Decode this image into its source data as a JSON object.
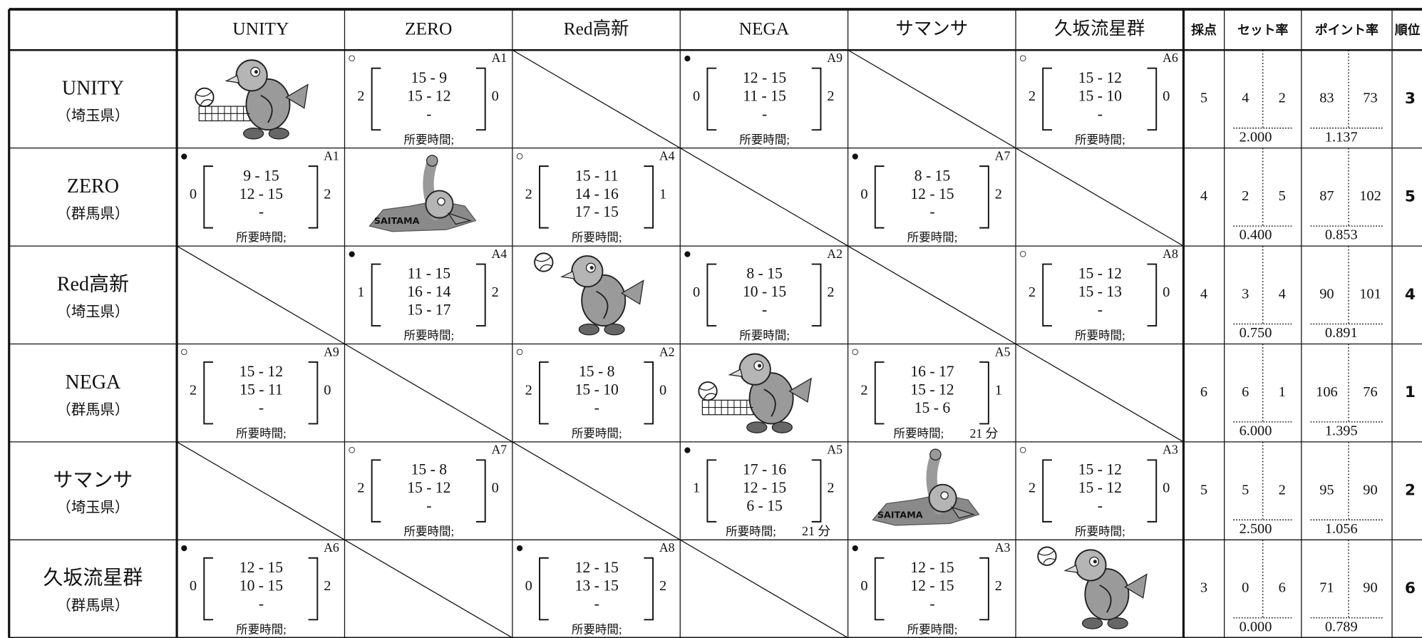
{
  "header": {
    "teams": [
      "UNITY",
      "ZERO",
      "Red高新",
      "NEGA",
      "サマンサ",
      "久坂流星群"
    ],
    "stats": [
      "採点",
      "セット率",
      "ポイント率",
      "順位"
    ]
  },
  "rows": [
    {
      "team": "UNITY",
      "pref": "（埼玉県）",
      "cells": [
        {
          "kind": "illustration",
          "style": "net"
        },
        {
          "kind": "match",
          "marker": "○",
          "code": "A1",
          "left": "2",
          "lines": [
            "15 - 9",
            "15 - 12",
            "-"
          ],
          "right": "0",
          "time": "所要時間;"
        },
        {
          "kind": "none"
        },
        {
          "kind": "match",
          "marker": "●",
          "code": "A9",
          "left": "0",
          "lines": [
            "12 - 15",
            "11 - 15",
            "-"
          ],
          "right": "2",
          "time": "所要時間;"
        },
        {
          "kind": "none"
        },
        {
          "kind": "match",
          "marker": "○",
          "code": "A6",
          "left": "2",
          "lines": [
            "15 - 12",
            "15 - 10",
            "-"
          ],
          "right": "0",
          "time": "所要時間;"
        }
      ],
      "points": "5",
      "sets_won": "4",
      "sets_lost": "2",
      "set_ratio": "2.000",
      "points_won": "83",
      "points_lost": "73",
      "point_ratio": "1.137",
      "rank": "3"
    },
    {
      "team": "ZERO",
      "pref": "（群馬県）",
      "cells": [
        {
          "kind": "match",
          "marker": "●",
          "code": "A1",
          "left": "0",
          "lines": [
            "9 - 15",
            "12 - 15",
            "-"
          ],
          "right": "2",
          "time": "所要時間;"
        },
        {
          "kind": "illustration",
          "style": "map",
          "map_text": "SAITAMA"
        },
        {
          "kind": "match",
          "marker": "○",
          "code": "A4",
          "left": "2",
          "lines": [
            "15 - 11",
            "14 - 16",
            "17 - 15"
          ],
          "right": "1",
          "time": "所要時間;"
        },
        {
          "kind": "none"
        },
        {
          "kind": "match",
          "marker": "●",
          "code": "A7",
          "left": "0",
          "lines": [
            "8 - 15",
            "12 - 15",
            "-"
          ],
          "right": "2",
          "time": "所要時間;"
        },
        {
          "kind": "none"
        }
      ],
      "points": "4",
      "sets_won": "2",
      "sets_lost": "5",
      "set_ratio": "0.400",
      "points_won": "87",
      "points_lost": "102",
      "point_ratio": "0.853",
      "rank": "5"
    },
    {
      "team": "Red高新",
      "pref": "（埼玉県）",
      "cells": [
        {
          "kind": "none"
        },
        {
          "kind": "match",
          "marker": "●",
          "code": "A4",
          "left": "1",
          "lines": [
            "11 - 15",
            "16 - 14",
            "15 - 17"
          ],
          "right": "2",
          "time": "所要時間;"
        },
        {
          "kind": "illustration",
          "style": "ball"
        },
        {
          "kind": "match",
          "marker": "●",
          "code": "A2",
          "left": "0",
          "lines": [
            "8 - 15",
            "10 - 15",
            "-"
          ],
          "right": "2",
          "time": "所要時間;"
        },
        {
          "kind": "none"
        },
        {
          "kind": "match",
          "marker": "○",
          "code": "A8",
          "left": "2",
          "lines": [
            "15 - 12",
            "15 - 13",
            "-"
          ],
          "right": "0",
          "time": "所要時間;"
        }
      ],
      "points": "4",
      "sets_won": "3",
      "sets_lost": "4",
      "set_ratio": "0.750",
      "points_won": "90",
      "points_lost": "101",
      "point_ratio": "0.891",
      "rank": "4"
    },
    {
      "team": "NEGA",
      "pref": "（群馬県）",
      "cells": [
        {
          "kind": "match",
          "marker": "○",
          "code": "A9",
          "left": "2",
          "lines": [
            "15 - 12",
            "15 - 11",
            "-"
          ],
          "right": "0",
          "time": "所要時間;"
        },
        {
          "kind": "none"
        },
        {
          "kind": "match",
          "marker": "○",
          "code": "A2",
          "left": "2",
          "lines": [
            "15 - 8",
            "15 - 10",
            "-"
          ],
          "right": "0",
          "time": "所要時間;"
        },
        {
          "kind": "illustration",
          "style": "net"
        },
        {
          "kind": "match",
          "marker": "○",
          "code": "A5",
          "left": "2",
          "lines": [
            "16 - 17",
            "15 - 12",
            "15 - 6"
          ],
          "right": "1",
          "time": "所要時間;",
          "duration": "21 分"
        },
        {
          "kind": "none"
        }
      ],
      "points": "6",
      "sets_won": "6",
      "sets_lost": "1",
      "set_ratio": "6.000",
      "points_won": "106",
      "points_lost": "76",
      "point_ratio": "1.395",
      "rank": "1"
    },
    {
      "team": "サマンサ",
      "pref": "（埼玉県）",
      "cells": [
        {
          "kind": "none"
        },
        {
          "kind": "match",
          "marker": "○",
          "code": "A7",
          "left": "2",
          "lines": [
            "15 - 8",
            "15 - 12",
            "-"
          ],
          "right": "0",
          "time": "所要時間;"
        },
        {
          "kind": "none"
        },
        {
          "kind": "match",
          "marker": "●",
          "code": "A5",
          "left": "1",
          "lines": [
            "17 - 16",
            "12 - 15",
            "6 - 15"
          ],
          "right": "2",
          "time": "所要時間;",
          "duration": "21 分"
        },
        {
          "kind": "illustration",
          "style": "map",
          "map_text": "SAITAMA"
        },
        {
          "kind": "match",
          "marker": "○",
          "code": "A3",
          "left": "2",
          "lines": [
            "15 - 12",
            "15 - 12",
            "-"
          ],
          "right": "0",
          "time": "所要時間;"
        }
      ],
      "points": "5",
      "sets_won": "5",
      "sets_lost": "2",
      "set_ratio": "2.500",
      "points_won": "95",
      "points_lost": "90",
      "point_ratio": "1.056",
      "rank": "2"
    },
    {
      "team": "久坂流星群",
      "pref": "（群馬県）",
      "cells": [
        {
          "kind": "match",
          "marker": "●",
          "code": "A6",
          "left": "0",
          "lines": [
            "12 - 15",
            "10 - 15",
            "-"
          ],
          "right": "2",
          "time": "所要時間;"
        },
        {
          "kind": "none"
        },
        {
          "kind": "match",
          "marker": "●",
          "code": "A8",
          "left": "0",
          "lines": [
            "12 - 15",
            "13 - 15",
            "-"
          ],
          "right": "2",
          "time": "所要時間;"
        },
        {
          "kind": "none"
        },
        {
          "kind": "match",
          "marker": "●",
          "code": "A3",
          "left": "0",
          "lines": [
            "12 - 15",
            "12 - 15",
            "-"
          ],
          "right": "2",
          "time": "所要時間;"
        },
        {
          "kind": "illustration",
          "style": "ball"
        }
      ],
      "points": "3",
      "sets_won": "0",
      "sets_lost": "6",
      "set_ratio": "0.000",
      "points_won": "71",
      "points_lost": "90",
      "point_ratio": "0.789",
      "rank": "6"
    }
  ]
}
